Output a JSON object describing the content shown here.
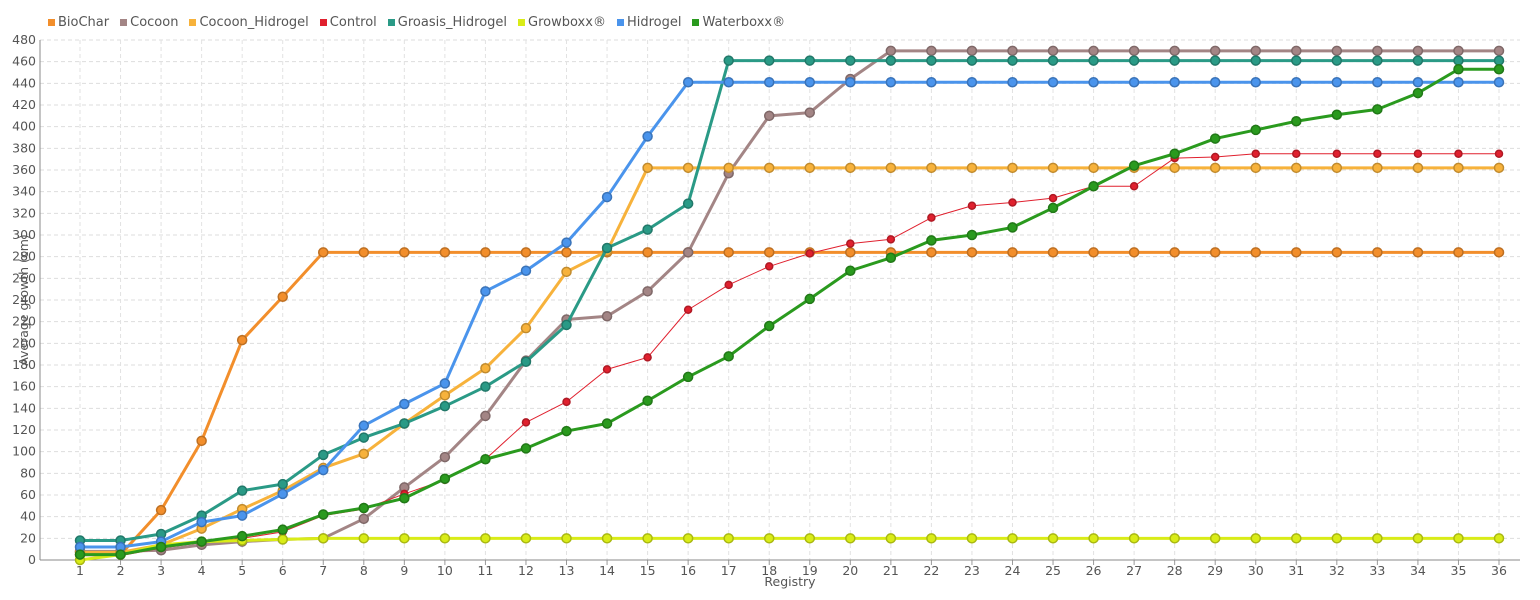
{
  "chart_data": {
    "type": "line",
    "xlabel": "Registry",
    "ylabel": "Average growth (cm)",
    "ylim": [
      0,
      480
    ],
    "yticks": [
      0,
      20,
      40,
      60,
      80,
      100,
      120,
      140,
      160,
      180,
      200,
      220,
      240,
      260,
      280,
      300,
      320,
      340,
      360,
      380,
      400,
      420,
      440,
      460,
      480
    ],
    "x": [
      1,
      2,
      3,
      4,
      5,
      6,
      7,
      8,
      9,
      10,
      11,
      12,
      13,
      14,
      15,
      16,
      17,
      18,
      19,
      20,
      21,
      22,
      23,
      24,
      25,
      26,
      27,
      28,
      29,
      30,
      31,
      32,
      33,
      34,
      35,
      36
    ],
    "grid": true,
    "legend_position": "top-left",
    "series": [
      {
        "name": "BioChar",
        "color": "#f28e2b",
        "stroke": 3,
        "marker": 9,
        "values": [
          5,
          5,
          46,
          110,
          203,
          243,
          284,
          284,
          284,
          284,
          284,
          284,
          284,
          284,
          284,
          284,
          284,
          284,
          284,
          284,
          284,
          284,
          284,
          284,
          284,
          284,
          284,
          284,
          284,
          284,
          284,
          284,
          284,
          284,
          284,
          284
        ]
      },
      {
        "name": "Cocoon",
        "color": "#a38585",
        "stroke": 3,
        "marker": 9,
        "values": [
          8,
          8,
          9,
          14,
          17,
          19,
          20,
          38,
          67,
          95,
          133,
          184,
          222,
          225,
          248,
          284,
          357,
          410,
          413,
          444,
          470,
          470,
          470,
          470,
          470,
          470,
          470,
          470,
          470,
          470,
          470,
          470,
          470,
          470,
          470,
          470
        ]
      },
      {
        "name": "Cocoon_Hidrogel",
        "color": "#f7b23b",
        "stroke": 3,
        "marker": 9,
        "values": [
          7,
          7,
          14,
          29,
          47,
          64,
          85,
          98,
          126,
          152,
          177,
          214,
          266,
          285,
          362,
          362,
          362,
          362,
          362,
          362,
          362,
          362,
          362,
          362,
          362,
          362,
          362,
          362,
          362,
          362,
          362,
          362,
          362,
          362,
          362,
          362
        ]
      },
      {
        "name": "Control",
        "color": "#e0202e",
        "stroke": 1,
        "marker": 7,
        "values": [
          4,
          4,
          11,
          16,
          20,
          26,
          41,
          47,
          61,
          74,
          93,
          127,
          146,
          176,
          187,
          231,
          254,
          271,
          283,
          292,
          296,
          316,
          327,
          330,
          334,
          345,
          345,
          371,
          372,
          375,
          375,
          375,
          375,
          375,
          375,
          375
        ]
      },
      {
        "name": "Groasis_Hidrogel",
        "color": "#2a9a86",
        "stroke": 3,
        "marker": 9,
        "values": [
          18,
          18,
          24,
          41,
          64,
          70,
          97,
          113,
          126,
          142,
          160,
          183,
          217,
          288,
          305,
          329,
          461,
          461,
          461,
          461,
          461,
          461,
          461,
          461,
          461,
          461,
          461,
          461,
          461,
          461,
          461,
          461,
          461,
          461,
          461,
          461
        ]
      },
      {
        "name": "Growboxx®",
        "color": "#d9ec17",
        "stroke": 3,
        "marker": 9,
        "values": [
          0,
          5,
          14,
          17,
          18,
          19,
          20,
          20,
          20,
          20,
          20,
          20,
          20,
          20,
          20,
          20,
          20,
          20,
          20,
          20,
          20,
          20,
          20,
          20,
          20,
          20,
          20,
          20,
          20,
          20,
          20,
          20,
          20,
          20,
          20,
          20
        ]
      },
      {
        "name": "Hidrogel",
        "color": "#4a94ec",
        "stroke": 3,
        "marker": 9,
        "values": [
          12,
          12,
          17,
          35,
          41,
          61,
          83,
          124,
          144,
          163,
          248,
          267,
          293,
          335,
          391,
          441,
          441,
          441,
          441,
          441,
          441,
          441,
          441,
          441,
          441,
          441,
          441,
          441,
          441,
          441,
          441,
          441,
          441,
          441,
          441,
          441
        ]
      },
      {
        "name": "Waterboxx®",
        "color": "#2a9a1e",
        "stroke": 3,
        "marker": 9,
        "values": [
          5,
          5,
          12,
          17,
          22,
          28,
          42,
          48,
          57,
          75,
          93,
          103,
          119,
          126,
          147,
          169,
          188,
          216,
          241,
          267,
          279,
          295,
          300,
          307,
          325,
          345,
          364,
          375,
          389,
          397,
          405,
          411,
          416,
          431,
          453,
          453
        ]
      }
    ]
  }
}
